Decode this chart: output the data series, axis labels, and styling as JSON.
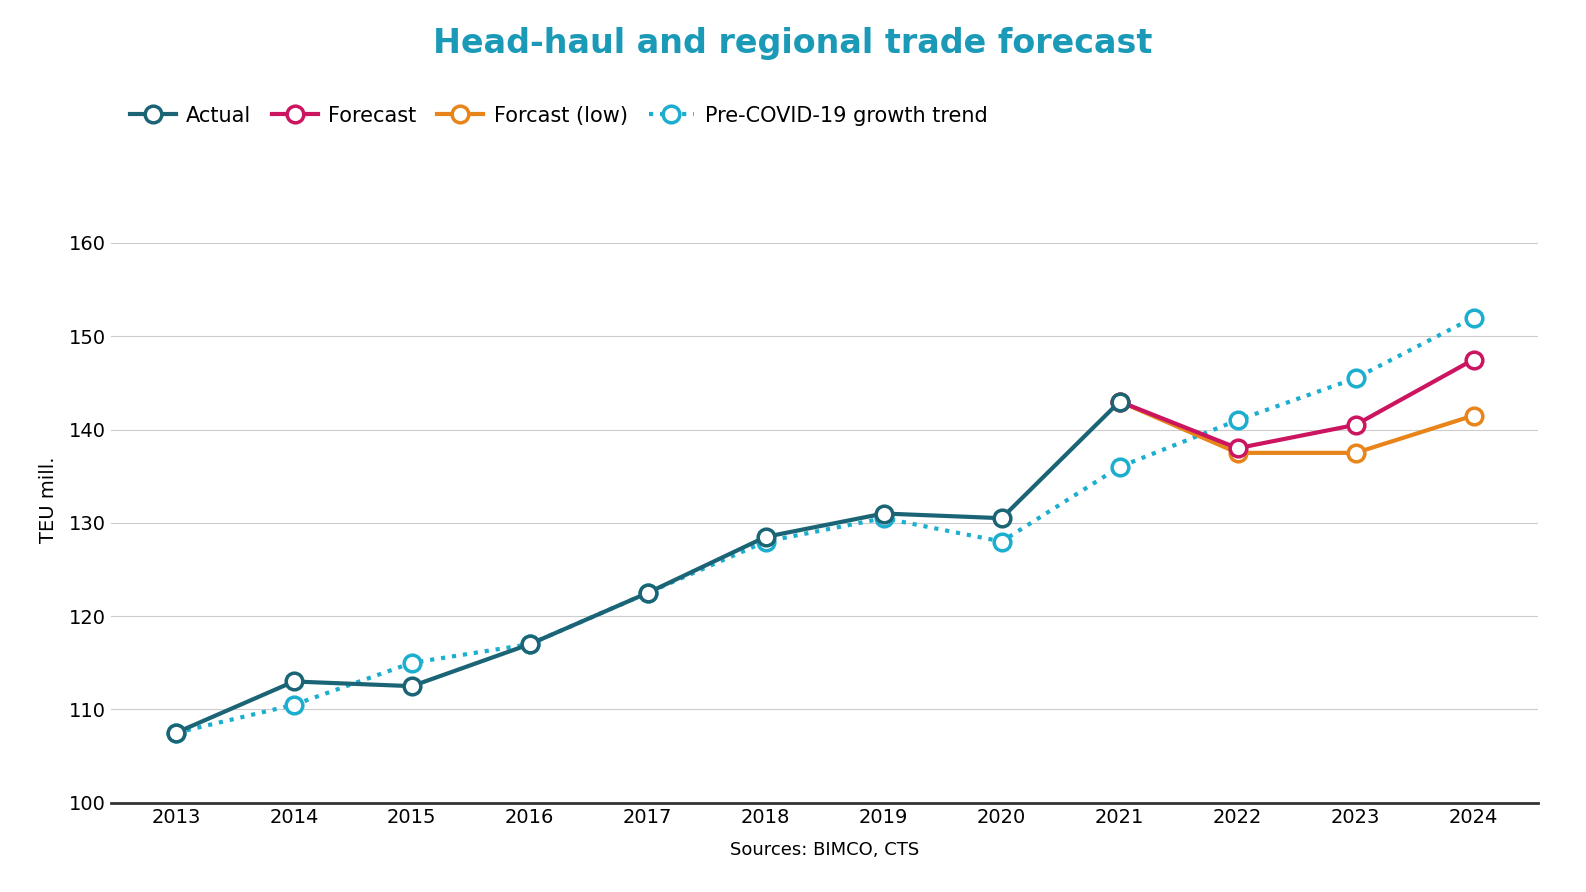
{
  "title": "Head-haul and regional trade forecast",
  "title_color": "#1b9ab8",
  "xlabel": "Sources: BIMCO, CTS",
  "ylabel": "TEU mill.",
  "ylim": [
    100,
    165
  ],
  "yticks": [
    100,
    110,
    120,
    130,
    140,
    150,
    160
  ],
  "actual_years": [
    2013,
    2014,
    2015,
    2016,
    2017,
    2018,
    2019,
    2020,
    2021
  ],
  "actual_values": [
    107.5,
    113.0,
    112.5,
    117.0,
    122.5,
    128.5,
    131.0,
    130.5,
    143.0
  ],
  "forecast_years": [
    2021,
    2022,
    2023,
    2024
  ],
  "forecast_values": [
    143.0,
    138.0,
    140.5,
    147.5
  ],
  "forecast_low_years": [
    2021,
    2022,
    2023,
    2024
  ],
  "forecast_low_values": [
    143.0,
    137.5,
    137.5,
    141.5
  ],
  "covid_trend_years": [
    2013,
    2014,
    2015,
    2016,
    2017,
    2018,
    2019,
    2020,
    2021,
    2022,
    2023,
    2024
  ],
  "covid_trend_values": [
    107.5,
    110.5,
    115.0,
    117.0,
    122.5,
    128.0,
    130.5,
    128.0,
    136.0,
    141.0,
    145.5,
    152.0
  ],
  "actual_color": "#1a6475",
  "forecast_color": "#cc1560",
  "forecast_low_color": "#e8851a",
  "covid_trend_color": "#1baecf",
  "background_color": "#ffffff",
  "grid_color": "#cccccc",
  "lw": 3.0,
  "ms": 12,
  "mew": 2.5
}
